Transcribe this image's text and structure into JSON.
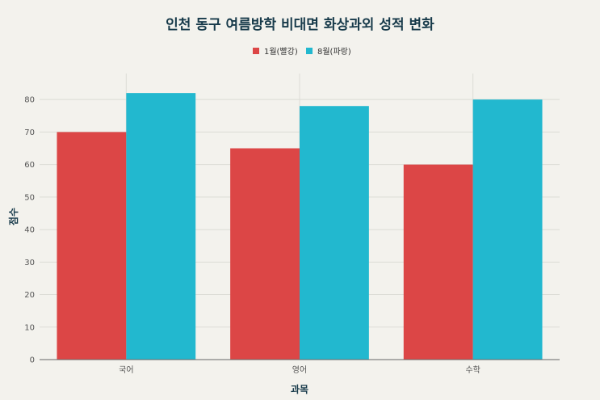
{
  "chart_data": {
    "type": "bar",
    "title": "인천 동구 여름방학 비대면 화상과외 성적 변화",
    "xlabel": "과목",
    "ylabel": "점수",
    "categories": [
      "국어",
      "영어",
      "수학"
    ],
    "series": [
      {
        "name": "1월(빨강)",
        "values": [
          70,
          65,
          60
        ],
        "color": "#dc4646"
      },
      {
        "name": "8월(파랑)",
        "values": [
          82,
          78,
          80
        ],
        "color": "#22b8cf"
      }
    ],
    "ylim": [
      0,
      88
    ],
    "yticks": [
      0,
      10,
      20,
      30,
      40,
      50,
      60,
      70,
      80
    ],
    "grid": true,
    "legend_position": "top-center"
  }
}
